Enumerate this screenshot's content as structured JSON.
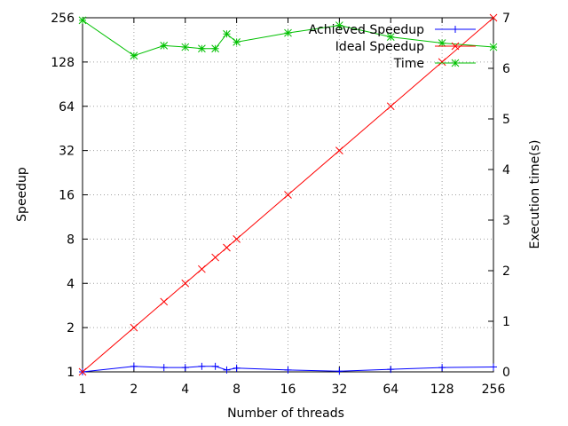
{
  "chart_data": {
    "type": "line",
    "xlabel": "Number of threads",
    "ylabel": "Speedup",
    "y2label": "Execution time(s)",
    "x_scale": "log2",
    "y_scale": "log2",
    "xlim": [
      1,
      256
    ],
    "ylim": [
      1,
      256
    ],
    "y2lim": [
      0,
      7
    ],
    "x_ticks": [
      "1",
      "2",
      "4",
      "8",
      "16",
      "32",
      "64",
      "128",
      "256"
    ],
    "y_ticks": [
      "1",
      "2",
      "4",
      "8",
      "16",
      "32",
      "64",
      "128",
      "256"
    ],
    "y2_ticks": [
      "0",
      "1",
      "2",
      "3",
      "4",
      "5",
      "6",
      "7"
    ],
    "grid": true,
    "legend_position": "top-right",
    "series": [
      {
        "name": "Achieved Speedup",
        "axis": "y",
        "color": "#0000ff",
        "marker": "plus",
        "x": [
          1,
          2,
          3,
          4,
          5,
          6,
          7,
          8,
          16,
          32,
          64,
          128,
          256
        ],
        "values": [
          1,
          1.09,
          1.07,
          1.07,
          1.09,
          1.09,
          1.03,
          1.06,
          1.03,
          1.01,
          1.04,
          1.07,
          1.08
        ]
      },
      {
        "name": "Ideal Speedup",
        "axis": "y",
        "color": "#ff0000",
        "marker": "cross",
        "x": [
          1,
          2,
          3,
          4,
          5,
          6,
          7,
          8,
          16,
          32,
          64,
          128,
          256
        ],
        "values": [
          1,
          2,
          3,
          4,
          5,
          6,
          7,
          8,
          16,
          32,
          64,
          128,
          256
        ]
      },
      {
        "name": "Time",
        "axis": "y2",
        "color": "#00c000",
        "marker": "star",
        "x": [
          1,
          2,
          3,
          4,
          5,
          6,
          7,
          8,
          16,
          32,
          64,
          128,
          256
        ],
        "values": [
          6.95,
          6.25,
          6.45,
          6.42,
          6.39,
          6.39,
          6.68,
          6.52,
          6.7,
          6.85,
          6.62,
          6.5,
          6.42
        ]
      }
    ]
  }
}
